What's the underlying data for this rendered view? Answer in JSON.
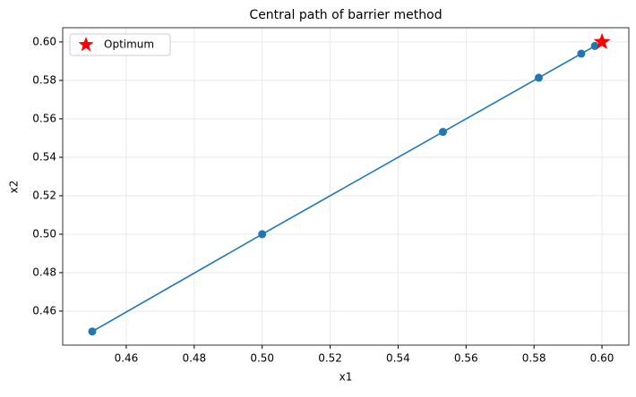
{
  "chart_data": {
    "type": "line",
    "title": "Central path of barrier method",
    "x_label": "x1",
    "y_label": "x2",
    "series": [
      {
        "color": "#1f77b4",
        "marker": "circle",
        "x": [
          0.45,
          0.5,
          0.5532,
          0.5814,
          0.5939,
          0.5979
        ],
        "values": [
          0.4494,
          0.5,
          0.5532,
          0.5814,
          0.5939,
          0.5979
        ]
      },
      {
        "name": "Optimum",
        "color": "#ff0000",
        "marker": "star",
        "x": [
          0.6
        ],
        "values": [
          0.6
        ]
      }
    ],
    "xlim": [
      0.4413,
      0.6079
    ],
    "ylim": [
      0.4423,
      0.6074
    ],
    "xticks": [
      0.46,
      0.48,
      {
        "value": 0.5,
        "label": "0.50"
      },
      0.52,
      0.54,
      0.56,
      0.58,
      {
        "value": 0.6,
        "label": "0.60"
      }
    ],
    "yticks": [
      0.46,
      0.48,
      {
        "value": 0.5,
        "label": "0.50"
      },
      0.52,
      0.54,
      0.56,
      0.58,
      {
        "value": 0.6,
        "label": "0.60"
      }
    ],
    "grid": true,
    "legend": "upper left"
  }
}
